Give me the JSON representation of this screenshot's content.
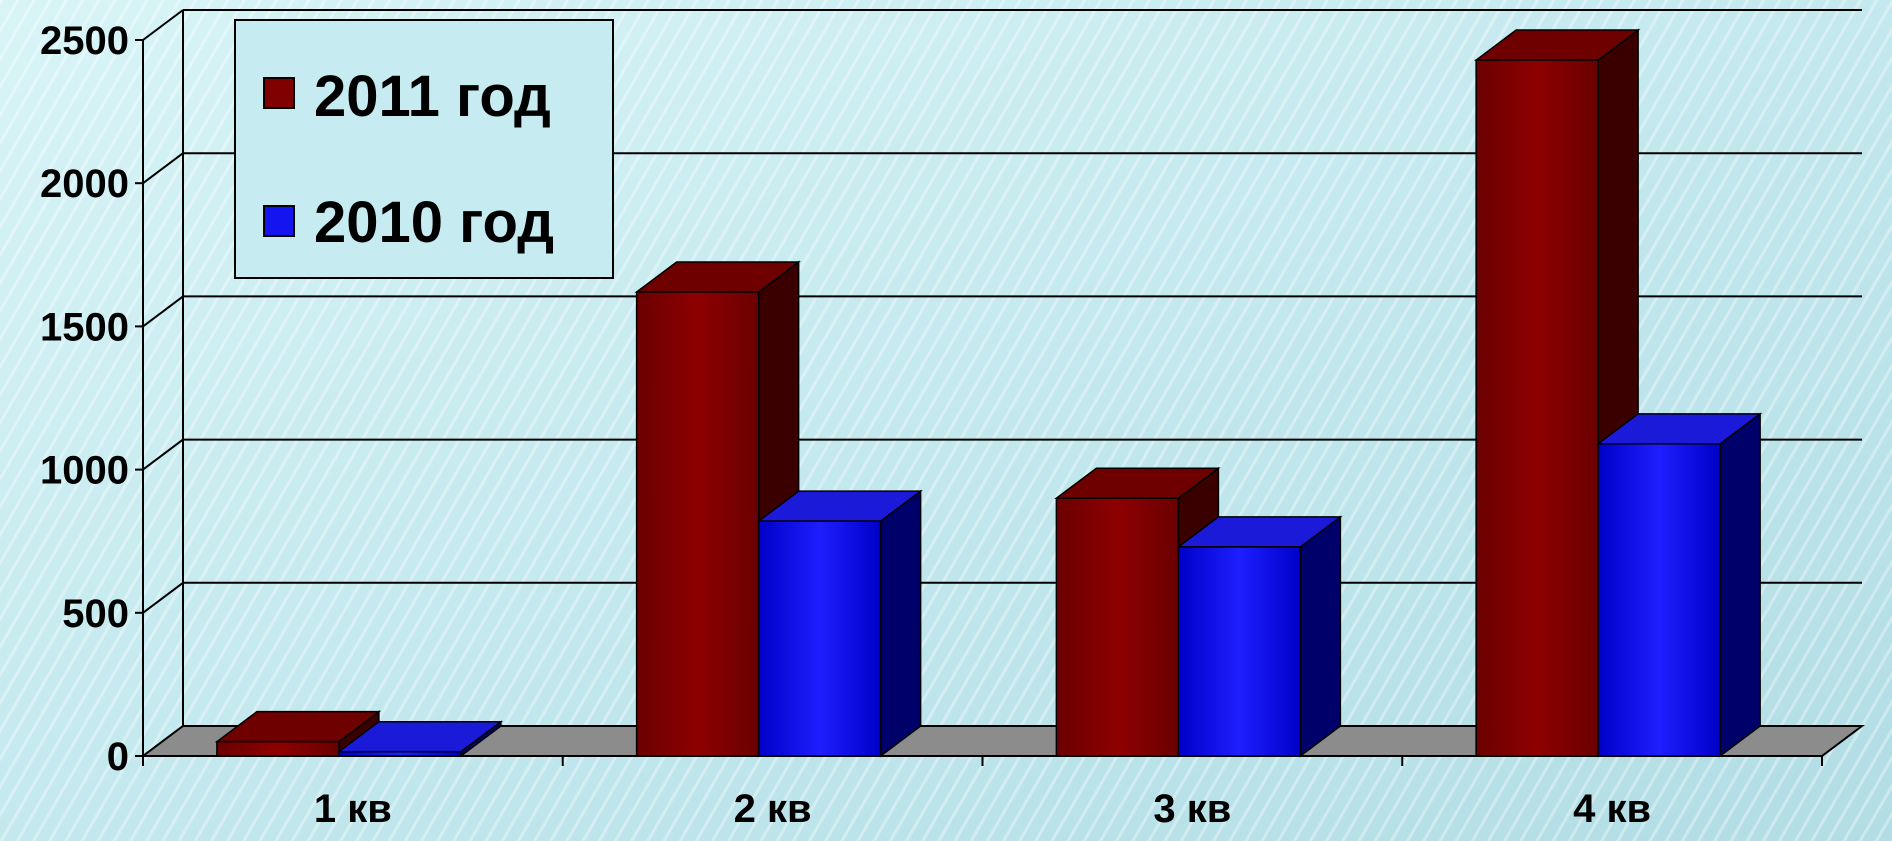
{
  "chart_data": {
    "type": "bar",
    "categories": [
      "1 кв",
      "2 кв",
      "3 кв",
      "4 кв"
    ],
    "series": [
      {
        "name": "2011 год",
        "values": [
          50,
          1620,
          900,
          2430
        ],
        "color": "#800000"
      },
      {
        "name": "2010 год",
        "values": [
          15,
          820,
          730,
          1090
        ],
        "color": "#1414f0"
      }
    ],
    "ylim": [
      0,
      2500
    ],
    "yticks": [
      "0",
      "500",
      "1000",
      "1500",
      "2000",
      "2500"
    ],
    "grid": true,
    "legend": "top-left",
    "floor_color": "#8c8c8c",
    "background": "#c9ecf1"
  }
}
